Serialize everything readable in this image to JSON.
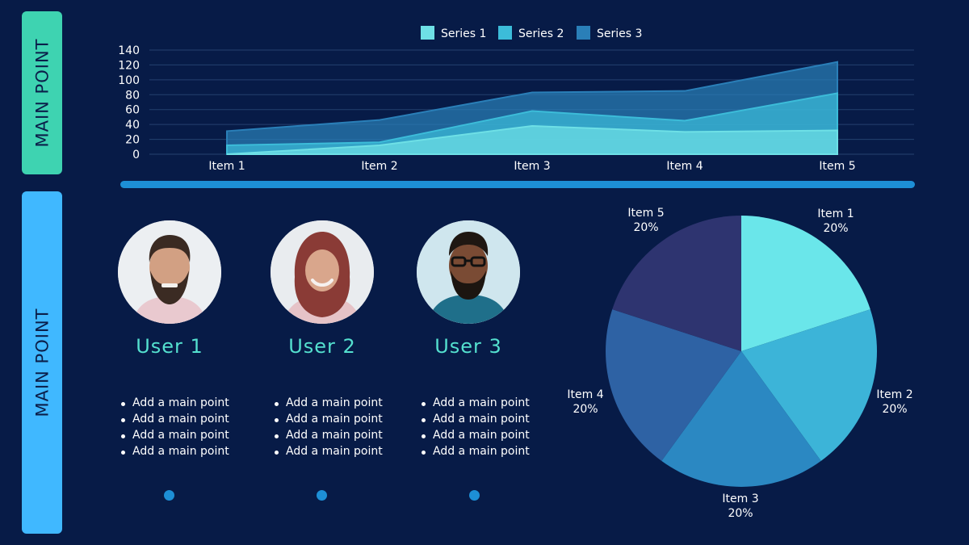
{
  "side_tabs": {
    "top_label": "MAIN POINT",
    "bottom_label": "MAIN POINT"
  },
  "colors": {
    "background": "#071b47",
    "tab_top": "#3ed3b1",
    "tab_bottom": "#40b8ff",
    "accent_bar": "#1d8fd6",
    "user_name": "#54e0cf"
  },
  "users": [
    {
      "name": "User 1",
      "points": [
        "Add a main point",
        "Add a main point",
        "Add a main point",
        "Add a main point"
      ]
    },
    {
      "name": "User 2",
      "points": [
        "Add a main point",
        "Add a main point",
        "Add a main point",
        "Add a main point"
      ]
    },
    {
      "name": "User 3",
      "points": [
        "Add a main point",
        "Add a main point",
        "Add a main point",
        "Add a main point"
      ]
    }
  ],
  "chart_data": [
    {
      "type": "area",
      "categories": [
        "Item 1",
        "Item 2",
        "Item 3",
        "Item 4",
        "Item 5"
      ],
      "series": [
        {
          "name": "Series 1",
          "values": [
            0,
            12,
            38,
            30,
            32
          ],
          "color": "#6ee0e6"
        },
        {
          "name": "Series 2",
          "values": [
            12,
            16,
            58,
            45,
            82
          ],
          "color": "#3cbcd9"
        },
        {
          "name": "Series 3",
          "values": [
            31,
            46,
            83,
            85,
            124
          ],
          "color": "#2a7fb8"
        }
      ],
      "yticks": [
        0,
        20,
        40,
        60,
        80,
        100,
        120,
        140
      ],
      "ylim": [
        0,
        140
      ],
      "grid": true,
      "legend": "top-center"
    },
    {
      "type": "pie",
      "slices": [
        {
          "label": "Item 1",
          "value": 20,
          "pct": "20%",
          "color": "#6ae6ea"
        },
        {
          "label": "Item 2",
          "value": 20,
          "pct": "20%",
          "color": "#3cb4d8"
        },
        {
          "label": "Item 3",
          "value": 20,
          "pct": "20%",
          "color": "#2b88c2"
        },
        {
          "label": "Item 4",
          "value": 20,
          "pct": "20%",
          "color": "#2e62a4"
        },
        {
          "label": "Item 5",
          "value": 20,
          "pct": "20%",
          "color": "#2e3470"
        }
      ]
    }
  ]
}
